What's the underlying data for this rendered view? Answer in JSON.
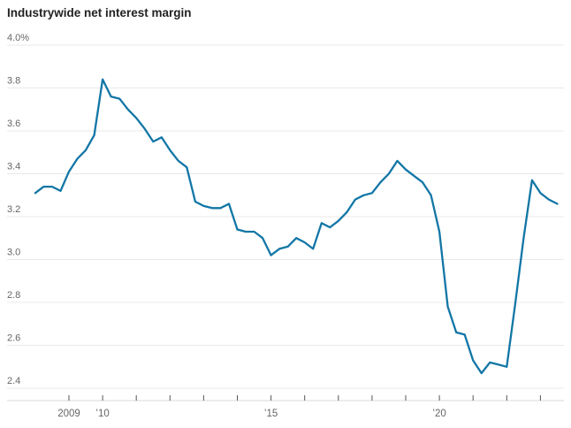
{
  "title": "Industrywide net interest margin",
  "colors": {
    "line": "#1276a6",
    "grid": "#e8e8e8",
    "baseline": "#d9d9d9",
    "tick": "#555555",
    "axis_label": "#666666",
    "title": "#222222",
    "background": "#ffffff"
  },
  "chart_data": {
    "type": "line",
    "title": "Industrywide net interest margin",
    "unit": "%",
    "frequency": "quarterly",
    "start_year": 2008,
    "start_quarter": 1,
    "series": [
      {
        "name": "Industrywide net interest margin",
        "values": [
          3.31,
          3.34,
          3.34,
          3.32,
          3.41,
          3.47,
          3.51,
          3.58,
          3.84,
          3.76,
          3.75,
          3.7,
          3.66,
          3.61,
          3.55,
          3.57,
          3.51,
          3.46,
          3.43,
          3.27,
          3.25,
          3.24,
          3.24,
          3.26,
          3.14,
          3.13,
          3.13,
          3.1,
          3.02,
          3.05,
          3.06,
          3.1,
          3.08,
          3.05,
          3.17,
          3.15,
          3.18,
          3.22,
          3.28,
          3.3,
          3.31,
          3.36,
          3.4,
          3.46,
          3.42,
          3.39,
          3.36,
          3.3,
          3.13,
          2.78,
          2.66,
          2.65,
          2.53,
          2.47,
          2.52,
          2.51,
          2.5,
          2.79,
          3.1,
          3.37,
          3.31,
          3.28,
          3.26
        ]
      }
    ],
    "ylim": [
      2.4,
      4.0
    ],
    "y_ticks": [
      {
        "value": 4.0,
        "label": "4.0%"
      },
      {
        "value": 3.8,
        "label": "3.8"
      },
      {
        "value": 3.6,
        "label": "3.6"
      },
      {
        "value": 3.4,
        "label": "3.4"
      },
      {
        "value": 3.2,
        "label": "3.2"
      },
      {
        "value": 3.0,
        "label": "3.0"
      },
      {
        "value": 2.8,
        "label": "2.8"
      },
      {
        "value": 2.6,
        "label": "2.6"
      },
      {
        "value": 2.4,
        "label": "2.4"
      }
    ],
    "x_ticks": [
      {
        "year": 2009,
        "label": "2009"
      },
      {
        "year": 2010,
        "label": "’10"
      },
      {
        "year": 2011,
        "label": ""
      },
      {
        "year": 2012,
        "label": ""
      },
      {
        "year": 2013,
        "label": ""
      },
      {
        "year": 2014,
        "label": ""
      },
      {
        "year": 2015,
        "label": "’15"
      },
      {
        "year": 2016,
        "label": ""
      },
      {
        "year": 2017,
        "label": ""
      },
      {
        "year": 2018,
        "label": ""
      },
      {
        "year": 2019,
        "label": ""
      },
      {
        "year": 2020,
        "label": "’20"
      },
      {
        "year": 2021,
        "label": ""
      },
      {
        "year": 2022,
        "label": ""
      },
      {
        "year": 2023,
        "label": ""
      }
    ],
    "grid": "horizontal",
    "legend": "none"
  }
}
